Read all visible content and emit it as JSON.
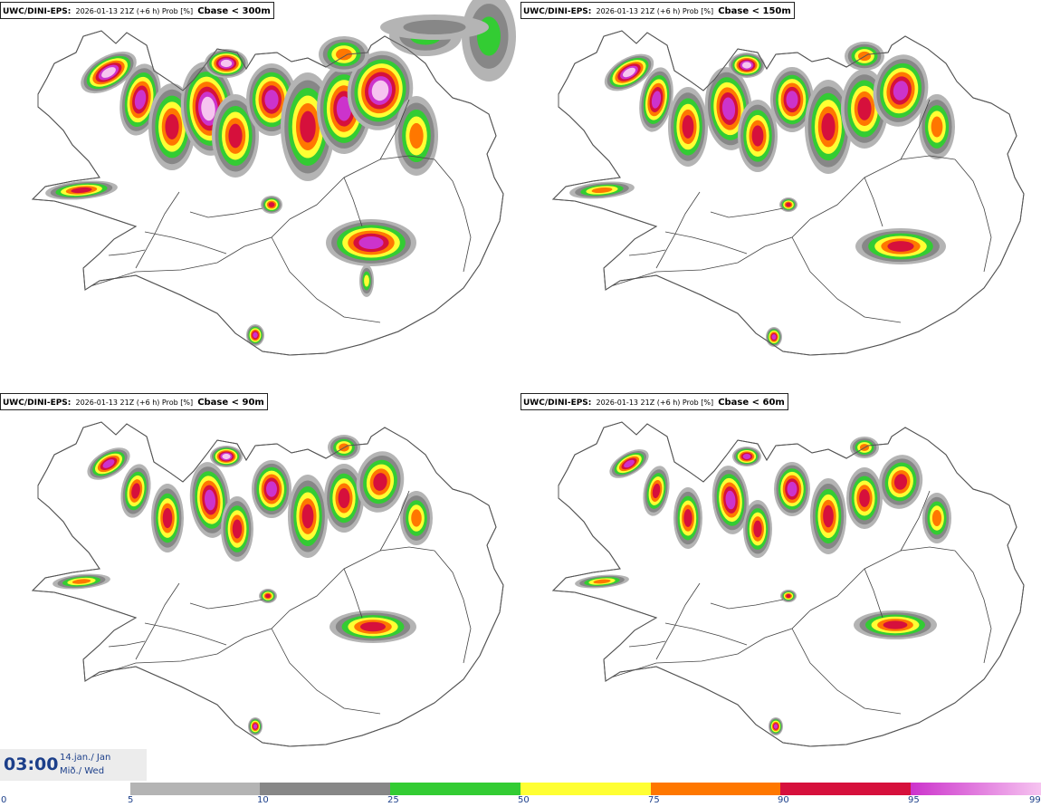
{
  "panels": [
    {
      "source": "UWC/DINI-EPS",
      "meta": "2026-01-13 21Z (+6 h) Prob [%]",
      "variable": "Cbase < 300m"
    },
    {
      "source": "UWC/DINI-EPS",
      "meta": "2026-01-13 21Z (+6 h) Prob [%]",
      "variable": "Cbase < 150m"
    },
    {
      "source": "UWC/DINI-EPS",
      "meta": "2026-01-13 21Z (+6 h) Prob [%]",
      "variable": "Cbase < 90m"
    },
    {
      "source": "UWC/DINI-EPS",
      "meta": "2026-01-13 21Z (+6 h) Prob [%]",
      "variable": "Cbase < 60m"
    }
  ],
  "valid_time": {
    "clock": "03:00",
    "date": "14.jan./ Jan",
    "weekday": "Mið./ Wed"
  },
  "legend": {
    "ticks": [
      "0",
      "5",
      "10",
      "25",
      "50",
      "75",
      "90",
      "95",
      "99"
    ],
    "colors": {
      "5-10": "#b4b4b4",
      "10-25": "#878787",
      "25-50": "#33cc33",
      "50-75": "#ffff33",
      "75-90": "#ff7700",
      "90-95": "#d6103c",
      "95-99": "#cc33cc",
      "99+": "#f6c4f0"
    }
  },
  "map": {
    "region": "Iceland",
    "outline_color": "#555555",
    "road_color": "#444444"
  }
}
